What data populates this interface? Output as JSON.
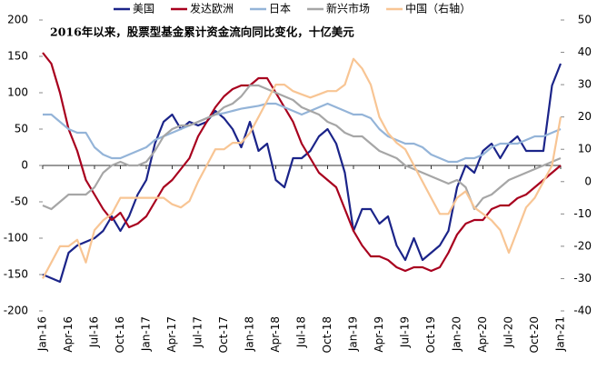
{
  "chart_data": {
    "type": "line",
    "annotation": "2016年以来，股票型基金累计资金流向同比变化，十亿美元",
    "categories": [
      "Jan-16",
      null,
      null,
      "Apr-16",
      null,
      null,
      "Jul-16",
      null,
      null,
      "Oct-16",
      null,
      null,
      "Jan-17",
      null,
      null,
      "Apr-17",
      null,
      null,
      "Jul-17",
      null,
      null,
      "Oct-17",
      null,
      null,
      "Jan-18",
      null,
      null,
      "Apr-18",
      null,
      null,
      "Jul-18",
      null,
      null,
      "Oct-18",
      null,
      null,
      "Jan-19",
      null,
      null,
      "Apr-19",
      null,
      null,
      "Jul-19",
      null,
      null,
      "Oct-19",
      null,
      null,
      "Jan-20",
      null,
      null,
      "Apr-20",
      null,
      null,
      "Jul-20",
      null,
      null,
      "Oct-20",
      null,
      null,
      "Jan-21"
    ],
    "series": [
      {
        "name": "美国",
        "color": "#1b2489",
        "values": [
          -150,
          -155,
          -160,
          -120,
          -110,
          -105,
          -100,
          -90,
          -70,
          -90,
          -70,
          -40,
          -20,
          30,
          60,
          70,
          50,
          60,
          55,
          60,
          75,
          65,
          50,
          25,
          60,
          20,
          30,
          -20,
          -30,
          10,
          10,
          20,
          40,
          50,
          30,
          -10,
          -90,
          -60,
          -60,
          -80,
          -70,
          -110,
          -130,
          -100,
          -130,
          -120,
          -110,
          -90,
          -30,
          0,
          -10,
          20,
          30,
          10,
          30,
          40,
          20,
          20,
          20,
          110,
          140
        ]
      },
      {
        "name": "发达欧洲",
        "color": "#a8001e",
        "values": [
          155,
          140,
          100,
          50,
          20,
          -20,
          -40,
          -60,
          -75,
          -65,
          -85,
          -80,
          -70,
          -50,
          -30,
          -20,
          -5,
          10,
          40,
          60,
          80,
          95,
          105,
          110,
          110,
          120,
          120,
          100,
          80,
          60,
          30,
          10,
          -10,
          -20,
          -30,
          -60,
          -90,
          -110,
          -125,
          -125,
          -130,
          -140,
          -145,
          -140,
          -140,
          -145,
          -140,
          -120,
          -95,
          -80,
          -75,
          -75,
          -60,
          -55,
          -55,
          -45,
          -40,
          -30,
          -20,
          -10,
          0
        ]
      },
      {
        "name": "日本",
        "color": "#94b4d8",
        "values": [
          70,
          70,
          60,
          50,
          45,
          45,
          25,
          15,
          10,
          10,
          15,
          20,
          25,
          35,
          40,
          45,
          50,
          55,
          60,
          65,
          70,
          72,
          75,
          78,
          80,
          82,
          85,
          85,
          80,
          75,
          70,
          75,
          80,
          85,
          80,
          75,
          70,
          70,
          65,
          50,
          40,
          35,
          30,
          30,
          25,
          15,
          10,
          5,
          5,
          10,
          10,
          15,
          25,
          30,
          30,
          30,
          35,
          40,
          40,
          45,
          50
        ]
      },
      {
        "name": "新兴市场",
        "color": "#a6a6a6",
        "values": [
          -55,
          -60,
          -50,
          -40,
          -40,
          -40,
          -30,
          -10,
          0,
          5,
          0,
          0,
          5,
          20,
          40,
          50,
          55,
          55,
          60,
          65,
          70,
          80,
          85,
          95,
          110,
          110,
          105,
          100,
          95,
          90,
          80,
          75,
          70,
          60,
          55,
          45,
          40,
          40,
          30,
          20,
          15,
          10,
          0,
          -5,
          -10,
          -15,
          -20,
          -25,
          -20,
          -30,
          -60,
          -45,
          -40,
          -30,
          -20,
          -15,
          -10,
          -5,
          0,
          5,
          10
        ]
      },
      {
        "name": "中国（右轴）",
        "color": "#f8c594",
        "axis": "y2",
        "values": [
          -30,
          -25,
          -20,
          -20,
          -18,
          -25,
          -15,
          -12,
          -10,
          -5,
          -5,
          -5,
          -5,
          -5,
          -5,
          -7,
          -8,
          -6,
          0,
          5,
          10,
          10,
          12,
          12,
          15,
          20,
          25,
          30,
          30,
          28,
          27,
          26,
          27,
          28,
          28,
          30,
          38,
          35,
          30,
          20,
          15,
          12,
          10,
          5,
          0,
          -5,
          -10,
          -10,
          -5,
          -3,
          -8,
          -10,
          -12,
          -15,
          -22,
          -15,
          -8,
          -5,
          0,
          5,
          20
        ]
      }
    ],
    "ylim": [
      -200,
      200
    ],
    "yticks": [
      -200,
      -150,
      -100,
      -50,
      0,
      50,
      100,
      150,
      200
    ],
    "y2lim": [
      -40,
      50
    ],
    "y2ticks": [
      -40,
      -30,
      -20,
      -10,
      0,
      10,
      20,
      30,
      40,
      50
    ],
    "legend": "top",
    "zero_line": true
  }
}
